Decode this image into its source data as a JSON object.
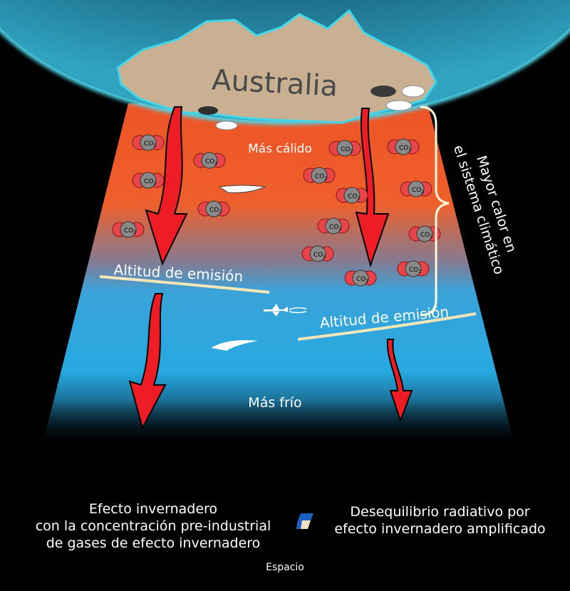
{
  "title": "Australia",
  "labels": {
    "warmer": "Más cálido",
    "colder": "Más frío",
    "emission_altitude_left": "Altitud de emisión",
    "emission_altitude_right": "Altitud de emisión",
    "more_heat_line1": "Mayor calor en",
    "more_heat_line2": "el sistema climático",
    "co2": "CO",
    "co2_sub": "2",
    "space": "Espacio"
  },
  "legend": {
    "left": [
      "Efecto invernadero",
      "con la concentración pre-industrial",
      "de gases de efecto invernadero"
    ],
    "right": [
      "Desequilibrio radiativo por",
      "efecto invernadero amplificado"
    ]
  },
  "colors": {
    "background": "#000000",
    "ocean": "#2a8fb0",
    "land": "#c9b093",
    "warm_layer": "#ef5a28",
    "cool_layer": "#27aae1",
    "arrow": "#ee1c24",
    "emission_line": "#f5e6b8",
    "co2_oxygen": "#e8444a",
    "co2_carbon": "#8a8a8a",
    "bracket": "#fff8dc"
  }
}
